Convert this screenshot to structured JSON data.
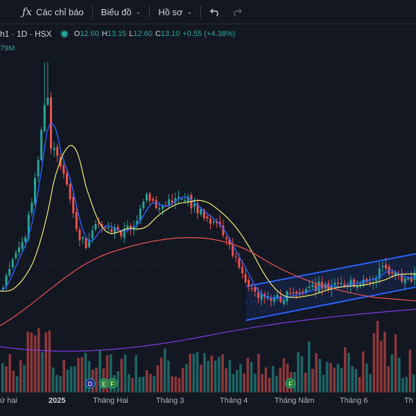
{
  "toolbar": {
    "indicators_label": "Các chỉ báo",
    "chart_label": "Biểu đồ",
    "profile_label": "Hồ sơ",
    "icons": [
      "function-icon",
      "undo-icon",
      "redo-icon",
      "chevron-down-icon"
    ]
  },
  "legend": {
    "symbol": "h1 · 1D · HSX",
    "open_key": "O",
    "open": "12.60",
    "high_key": "H",
    "high": "13.15",
    "low_key": "L",
    "low": "12.60",
    "close_key": "C",
    "close": "13.10",
    "change": "+0.55 (+4.38%)",
    "volume": "79M"
  },
  "time_axis": {
    "labels": [
      "ứ hai",
      "2025",
      "Tháng Hai",
      "Tháng 3",
      "Tháng 4",
      "Tháng Năm",
      "Tháng 6",
      "Th"
    ]
  },
  "event_markers": [
    "D",
    "E",
    "F",
    "F"
  ],
  "colors": {
    "background": "#131722",
    "up": "#26a69a",
    "down": "#ef5350",
    "ma_fast": "#2962ff",
    "ma_mid": "#e9e26b",
    "ma_slow": "#ef5350",
    "ma_long": "#7b3fe4",
    "channel": "#2962ff"
  }
}
